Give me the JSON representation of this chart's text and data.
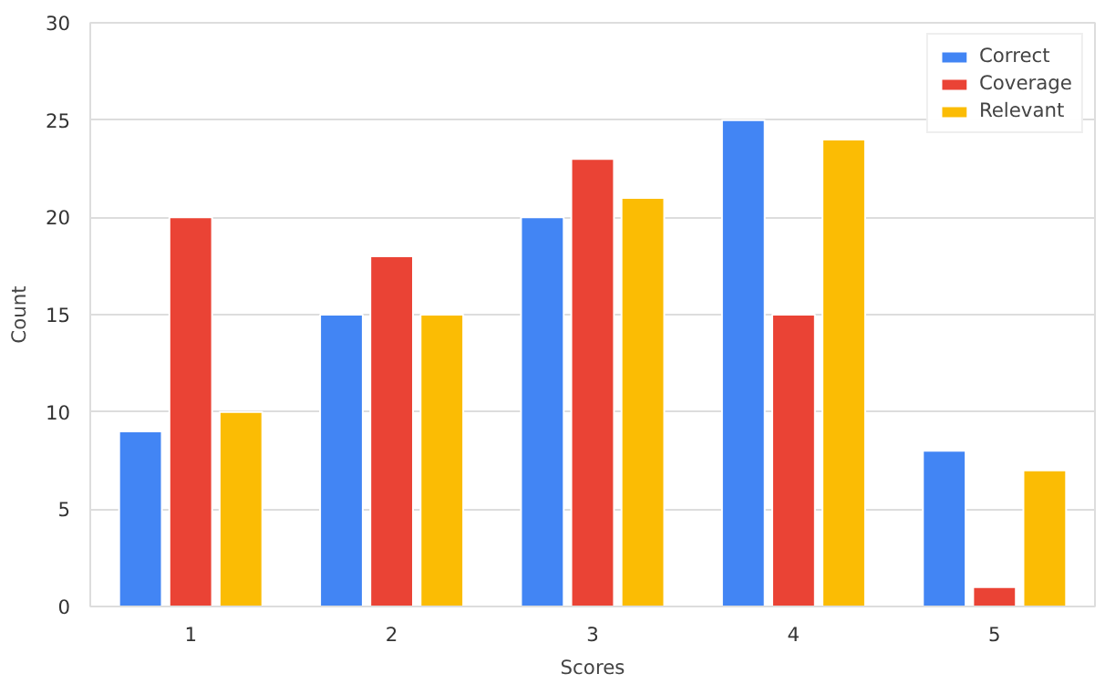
{
  "chart_data": {
    "type": "bar",
    "xlabel": "Scores",
    "ylabel": "Count",
    "categories": [
      "1",
      "2",
      "3",
      "4",
      "5"
    ],
    "series": [
      {
        "name": "Correct",
        "color": "#4285f4",
        "values": [
          9,
          15,
          20,
          25,
          8
        ]
      },
      {
        "name": "Coverage",
        "color": "#ea4335",
        "values": [
          20,
          18,
          23,
          15,
          1
        ]
      },
      {
        "name": "Relevant",
        "color": "#fbbc04",
        "values": [
          10,
          15,
          21,
          24,
          7
        ]
      }
    ],
    "ylim": [
      0,
      30
    ],
    "yticks": [
      0,
      5,
      10,
      15,
      20,
      25,
      30
    ],
    "grid": "y",
    "legend": "top right"
  }
}
